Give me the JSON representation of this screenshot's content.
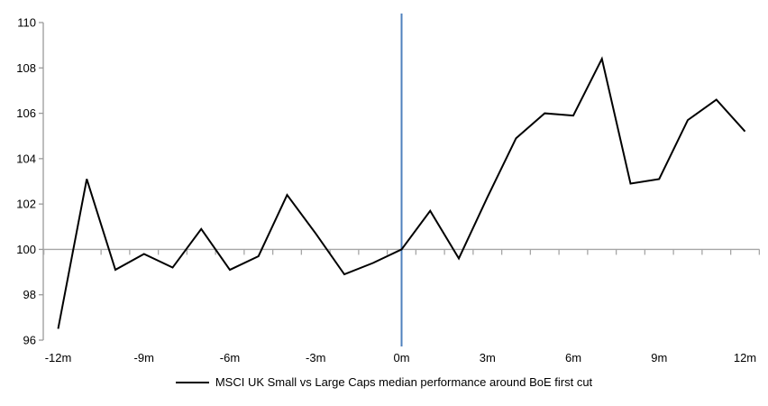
{
  "legend": {
    "label": "MSCI UK Small vs Large Caps median performance around BoE first cut"
  },
  "chart_data": {
    "type": "line",
    "title": "",
    "xlabel": "",
    "ylabel": "",
    "x_months_relative_to_first_cut": [
      -12,
      -11,
      -10,
      -9,
      -8,
      -7,
      -6,
      -5,
      -4,
      -3,
      -2,
      -1,
      0,
      1,
      2,
      3,
      4,
      5,
      6,
      7,
      8,
      9,
      10,
      11,
      12
    ],
    "series": [
      {
        "name": "MSCI UK Small vs Large Caps median performance around BoE first cut",
        "color": "#000000",
        "values": [
          96.5,
          103.1,
          99.1,
          99.8,
          99.2,
          100.9,
          99.1,
          99.7,
          102.4,
          100.7,
          98.9,
          99.4,
          100.0,
          101.7,
          99.6,
          102.3,
          104.9,
          106.0,
          105.9,
          108.4,
          102.9,
          103.1,
          105.7,
          106.6,
          105.2
        ]
      }
    ],
    "xticks": [
      {
        "x": -12,
        "label": "-12m"
      },
      {
        "x": -9,
        "label": "-9m"
      },
      {
        "x": -6,
        "label": "-6m"
      },
      {
        "x": -3,
        "label": "-3m"
      },
      {
        "x": 0,
        "label": "0m"
      },
      {
        "x": 3,
        "label": "3m"
      },
      {
        "x": 6,
        "label": "6m"
      },
      {
        "x": 9,
        "label": "9m"
      },
      {
        "x": 12,
        "label": "12m"
      }
    ],
    "yticks": [
      96,
      98,
      100,
      102,
      104,
      106,
      108,
      110
    ],
    "ylim": [
      96,
      110
    ],
    "baseline_value": 100,
    "event_line_x": 0,
    "grid": "off",
    "legend_position": "bottom",
    "colors": {
      "series_line": "#000000",
      "event_line": "#4f81bd",
      "baseline_axis": "#a6a6a6",
      "y_axis": "#9a9a9a",
      "text": "#000000"
    }
  }
}
